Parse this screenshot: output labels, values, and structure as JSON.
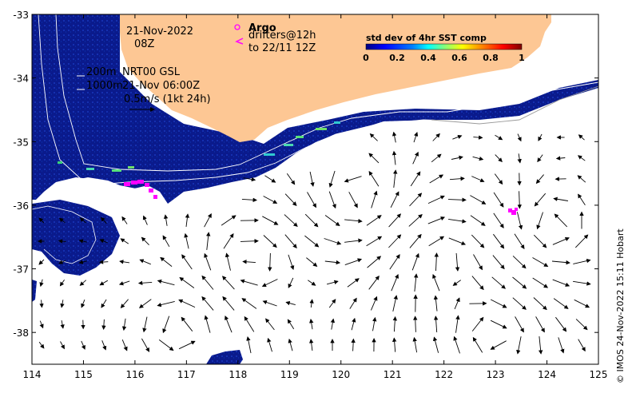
{
  "map": {
    "lon_range": [
      114,
      125
    ],
    "lat_range": [
      -38.5,
      -33
    ],
    "x_ticks": [
      "114",
      "115",
      "116",
      "117",
      "118",
      "119",
      "120",
      "121",
      "122",
      "123",
      "124",
      "125"
    ],
    "y_ticks": [
      "-33",
      "-34",
      "-35",
      "-36",
      "-37",
      "-38"
    ]
  },
  "annotations": {
    "date": "21-Nov-2022",
    "hour": "08Z",
    "argo_label": "Argo",
    "drifters_label": "drifters@12h",
    "drifters_until": "to 22/11 12Z",
    "contour_200": "200m",
    "contour_1000": "1000m",
    "product": "NRT00 GSL",
    "product_time": "21-Nov 06:00Z",
    "vector_scale": "0.5m/s (1kt 24h)"
  },
  "colorbar": {
    "title": "std dev of 4hr SST comp",
    "ticks": [
      "0",
      "0.2",
      "0.4",
      "0.6",
      "0.8",
      "1"
    ],
    "colors": [
      "#00007f",
      "#0000ff",
      "#007fff",
      "#00ffff",
      "#7fff7f",
      "#ffff00",
      "#ff7f00",
      "#ff0000",
      "#7f0000"
    ]
  },
  "colors": {
    "land": "#fdc794",
    "sst_deep": "#0a1a8c",
    "marker": "#ff00ff"
  },
  "credit": "© IMOS 24-Nov-2022 15:11 Hobart"
}
